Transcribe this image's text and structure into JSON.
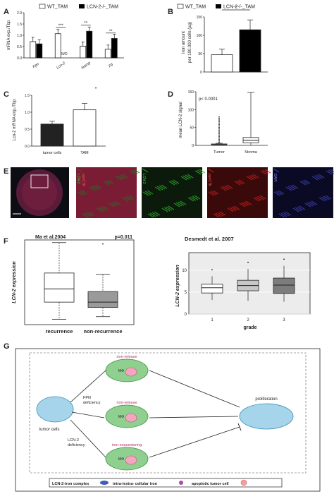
{
  "panel_labels": [
    "A",
    "B",
    "C",
    "D",
    "E",
    "F",
    "G"
  ],
  "chart_data": [
    {
      "panel": "A",
      "type": "bar",
      "ylabel": "mRNA exp./Tbp",
      "ylim": [
        0,
        2.0
      ],
      "yticks": [
        "0.0",
        "0.5",
        "1.0",
        "1.5",
        "2.0"
      ],
      "categories": [
        "Fpn",
        "Lcn-2",
        "Hamp",
        "Ftl"
      ],
      "series": [
        {
          "name": "WT_TAM",
          "color": "#ffffff",
          "values": [
            0.72,
            1.07,
            0.52,
            0.38
          ]
        },
        {
          "name": "LCN-2-/-_TAM",
          "color": "#000000",
          "values": [
            0.62,
            0.0,
            1.18,
            0.86
          ]
        }
      ],
      "value_labels": {
        "Lcn-2": "N/D"
      },
      "significance": [
        "***",
        "**",
        "**"
      ]
    },
    {
      "panel": "B",
      "type": "bar",
      "ylabel": "iron amount per 100.000 cells (µg)",
      "ylim": [
        0,
        150
      ],
      "yticks": [
        "0",
        "50",
        "100",
        "150"
      ],
      "categories": [
        "WT_TAM",
        "LCN-2-/-_TAM"
      ],
      "series": [
        {
          "name": "WT_TAM",
          "color": "#ffffff",
          "values": [
            47,
            null
          ]
        },
        {
          "name": "LCN-2-/-_TAM",
          "color": "#000000",
          "values": [
            null,
            115
          ]
        }
      ],
      "significance": [
        "*"
      ]
    },
    {
      "panel": "C",
      "type": "bar",
      "ylabel": "Lcn-2 mRNA exp./Tbp",
      "ylim": [
        0,
        1.5
      ],
      "yticks": [
        "0.0",
        "0.5",
        "1.0",
        "1.5"
      ],
      "categories": [
        "tumor cells",
        "TAM"
      ],
      "values": [
        0.65,
        1.07
      ],
      "colors": [
        "#222222",
        "#ffffff"
      ],
      "significance": [
        "*"
      ]
    },
    {
      "panel": "D",
      "type": "box",
      "ylabel": "mean LCN-2 signal",
      "ylim": [
        0,
        150
      ],
      "yticks": [
        "0",
        "50",
        "100",
        "150"
      ],
      "categories": [
        "Tumor",
        "Stroma"
      ],
      "annotation": "p< 0.0001",
      "boxes": [
        {
          "min": 0,
          "q1": 1,
          "median": 2,
          "q3": 4,
          "max": 6
        },
        {
          "min": 1,
          "q1": 7,
          "median": 14,
          "q3": 22,
          "max": 148
        }
      ]
    },
    {
      "panel": "F-left",
      "type": "box",
      "title": "Ma et al.2004",
      "pvalue": "p=0.011",
      "ylabel": "LCN-2 expression",
      "categories": [
        "recurrence",
        "non-recurrence"
      ],
      "ylim": [
        -1.0,
        2.2
      ],
      "boxes": [
        {
          "min": -0.8,
          "q1": -0.15,
          "median": 0.35,
          "q3": 0.95,
          "max": 2.1,
          "fill": "#ffffff"
        },
        {
          "min": -0.7,
          "q1": -0.35,
          "median": -0.15,
          "q3": 0.25,
          "max": 0.9,
          "fill": "#9a9a9a"
        }
      ]
    },
    {
      "panel": "F-right",
      "type": "box",
      "title": "Desmedt et al. 2007",
      "ylabel": "LCN-2 expression",
      "xlabel": "grade",
      "categories": [
        "1",
        "2",
        "3"
      ],
      "ylim": [
        0,
        14
      ],
      "yticks": [
        "0",
        "5",
        "10"
      ],
      "boxes": [
        {
          "min": 3.2,
          "q1": 4.8,
          "median": 6.0,
          "q3": 6.8,
          "max": 8.6,
          "fill": "#ffffff"
        },
        {
          "min": 3.0,
          "q1": 5.3,
          "median": 6.5,
          "q3": 7.7,
          "max": 10.3,
          "fill": "#c7c7c7"
        },
        {
          "min": 2.8,
          "q1": 4.7,
          "median": 6.6,
          "q3": 8.2,
          "max": 11.0,
          "fill": "#7c7c7c"
        }
      ]
    }
  ],
  "panel_e": {
    "channel_labels": [
      "LCN-2",
      "panCTK",
      "DAPI"
    ]
  },
  "diagram_g": {
    "start": "tumor cells",
    "arrow_labels": [
      "FPN deficiency",
      "LCN-2 deficiency"
    ],
    "states": [
      "iron-release",
      "iron-release",
      "iron-sequestering"
    ],
    "mo_label": "MΦ",
    "end": "proliferation",
    "legend": [
      "LCN-2-iron complex",
      "intra-/extra- cellular iron",
      "apoptotic tumor cell"
    ]
  }
}
